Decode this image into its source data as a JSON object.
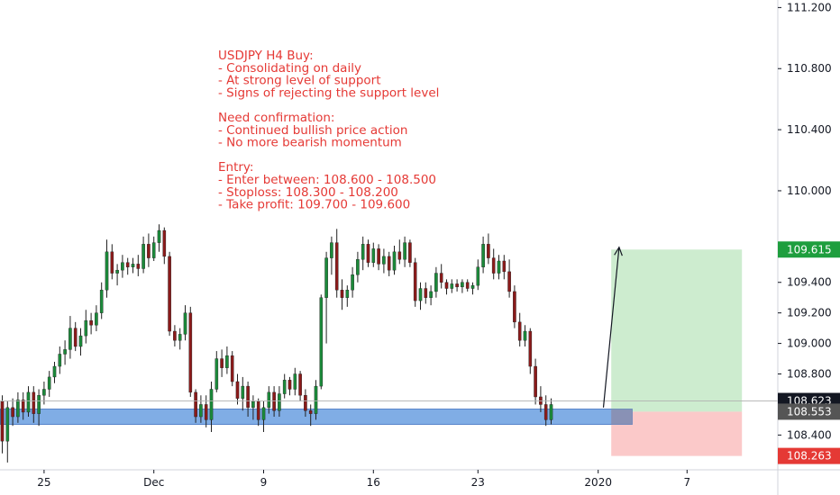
{
  "chart_data": {
    "type": "candlestick",
    "symbol": "USDJPY",
    "timeframe": "H4",
    "colors": {
      "up": "#26a69a",
      "up_body": "#1b8a3a",
      "down": "#8b1a1a",
      "support_zone": "#6a9fe0",
      "profit_zone": "#cdeccf",
      "loss_zone": "#fbc9c9",
      "take_profit_tag": "#1e9e3e",
      "stop_tag": "#e53935",
      "price_tag": "#131722",
      "zone_tag": "#555555",
      "text": "#e53935"
    },
    "y_axis": {
      "ylim": [
        108.19,
        111.22
      ],
      "ticks": [
        "111.200",
        "110.800",
        "110.400",
        "110.000",
        "109.400",
        "109.200",
        "109.000",
        "108.800",
        "108.400"
      ]
    },
    "x_axis": {
      "ticks": [
        {
          "label": "25",
          "bar": 8
        },
        {
          "label": "Dec",
          "bar": 29
        },
        {
          "label": "9",
          "bar": 50
        },
        {
          "label": "16",
          "bar": 71
        },
        {
          "label": "23",
          "bar": 91
        },
        {
          "label": "2020",
          "bar": 114
        },
        {
          "label": "7",
          "bar": 131
        }
      ]
    },
    "price_tags": {
      "take_profit": "109.615",
      "current": "108.623",
      "zone": "108.553",
      "stop": "108.263"
    },
    "levels": {
      "current": 108.623,
      "support_zone": [
        108.47,
        108.57
      ],
      "entry": 108.553,
      "take_profit": 109.615,
      "stop": 108.263
    },
    "position": {
      "start_bar": 116.5,
      "end_bar": 141.5,
      "zone_end_bar": 120.5,
      "arrow_from": {
        "bar": 115,
        "price": 108.58
      },
      "arrow_to": {
        "bar": 118,
        "price": 109.63
      }
    },
    "annotation": [
      "USDJPY H4 Buy:",
      "    - Consolidating on daily",
      "    - At strong level of support",
      "    - Signs of rejecting the support level",
      "",
      "Need confirmation:",
      "    - Continued bullish price action",
      "    - No more bearish momentum",
      "",
      "Entry:",
      "    - Enter between: 108.600 - 108.500",
      "    - Stoploss: 108.300 - 108.200",
      "    - Take profit: 109.700 - 109.600"
    ],
    "candles": [
      [
        108.62,
        108.66,
        108.28,
        108.36
      ],
      [
        108.36,
        108.62,
        108.22,
        108.58
      ],
      [
        108.58,
        108.64,
        108.46,
        108.52
      ],
      [
        108.52,
        108.68,
        108.48,
        108.63
      ],
      [
        108.63,
        108.68,
        108.5,
        108.55
      ],
      [
        108.55,
        108.72,
        108.52,
        108.68
      ],
      [
        108.68,
        108.72,
        108.48,
        108.54
      ],
      [
        108.54,
        108.7,
        108.46,
        108.66
      ],
      [
        108.66,
        108.75,
        108.6,
        108.7
      ],
      [
        108.7,
        108.82,
        108.65,
        108.78
      ],
      [
        108.78,
        108.88,
        108.74,
        108.85
      ],
      [
        108.85,
        108.98,
        108.8,
        108.93
      ],
      [
        108.93,
        109.02,
        108.86,
        108.96
      ],
      [
        108.96,
        109.18,
        108.9,
        109.1
      ],
      [
        109.1,
        109.14,
        108.95,
        108.98
      ],
      [
        108.98,
        109.1,
        108.92,
        109.05
      ],
      [
        109.05,
        109.22,
        109.0,
        109.15
      ],
      [
        109.15,
        109.2,
        109.06,
        109.12
      ],
      [
        109.12,
        109.25,
        109.08,
        109.2
      ],
      [
        109.2,
        109.4,
        109.16,
        109.35
      ],
      [
        109.35,
        109.68,
        109.3,
        109.6
      ],
      [
        109.6,
        109.65,
        109.42,
        109.46
      ],
      [
        109.46,
        109.52,
        109.38,
        109.48
      ],
      [
        109.48,
        109.58,
        109.43,
        109.53
      ],
      [
        109.53,
        109.56,
        109.45,
        109.5
      ],
      [
        109.5,
        109.56,
        109.46,
        109.52
      ],
      [
        109.52,
        109.58,
        109.44,
        109.49
      ],
      [
        109.49,
        109.7,
        109.46,
        109.65
      ],
      [
        109.65,
        109.72,
        109.5,
        109.56
      ],
      [
        109.56,
        109.7,
        109.54,
        109.66
      ],
      [
        109.66,
        109.78,
        109.6,
        109.74
      ],
      [
        109.74,
        109.76,
        109.52,
        109.57
      ],
      [
        109.57,
        109.6,
        109.05,
        109.08
      ],
      [
        109.08,
        109.12,
        108.98,
        109.02
      ],
      [
        109.02,
        109.1,
        108.96,
        109.06
      ],
      [
        109.06,
        109.25,
        109.02,
        109.2
      ],
      [
        109.2,
        109.24,
        108.65,
        108.68
      ],
      [
        108.68,
        108.7,
        108.48,
        108.52
      ],
      [
        108.52,
        108.66,
        108.48,
        108.6
      ],
      [
        108.6,
        108.66,
        108.45,
        108.5
      ],
      [
        108.5,
        108.75,
        108.42,
        108.7
      ],
      [
        108.7,
        108.95,
        108.68,
        108.9
      ],
      [
        108.9,
        108.96,
        108.78,
        108.84
      ],
      [
        108.84,
        108.98,
        108.8,
        108.92
      ],
      [
        108.92,
        108.95,
        108.72,
        108.75
      ],
      [
        108.75,
        108.8,
        108.6,
        108.64
      ],
      [
        108.64,
        108.78,
        108.56,
        108.72
      ],
      [
        108.72,
        108.75,
        108.52,
        108.58
      ],
      [
        108.58,
        108.66,
        108.5,
        108.62
      ],
      [
        108.62,
        108.64,
        108.46,
        108.5
      ],
      [
        108.5,
        108.62,
        108.42,
        108.58
      ],
      [
        108.58,
        108.72,
        108.54,
        108.68
      ],
      [
        108.68,
        108.72,
        108.52,
        108.56
      ],
      [
        108.56,
        108.72,
        108.52,
        108.67
      ],
      [
        108.67,
        108.8,
        108.64,
        108.76
      ],
      [
        108.76,
        108.78,
        108.66,
        108.7
      ],
      [
        108.7,
        108.84,
        108.66,
        108.8
      ],
      [
        108.8,
        108.82,
        108.62,
        108.66
      ],
      [
        108.66,
        108.7,
        108.52,
        108.56
      ],
      [
        108.56,
        108.6,
        108.46,
        108.54
      ],
      [
        108.54,
        108.76,
        108.5,
        108.72
      ],
      [
        108.72,
        109.32,
        108.7,
        109.3
      ],
      [
        109.3,
        109.6,
        109.0,
        109.56
      ],
      [
        109.56,
        109.7,
        109.45,
        109.66
      ],
      [
        109.66,
        109.75,
        109.3,
        109.35
      ],
      [
        109.35,
        109.42,
        109.22,
        109.3
      ],
      [
        109.3,
        109.38,
        109.24,
        109.35
      ],
      [
        109.35,
        109.5,
        109.3,
        109.45
      ],
      [
        109.45,
        109.6,
        109.4,
        109.55
      ],
      [
        109.55,
        109.7,
        109.48,
        109.65
      ],
      [
        109.65,
        109.68,
        109.5,
        109.53
      ],
      [
        109.53,
        109.66,
        109.5,
        109.62
      ],
      [
        109.62,
        109.65,
        109.48,
        109.52
      ],
      [
        109.52,
        109.62,
        109.46,
        109.57
      ],
      [
        109.57,
        109.6,
        109.44,
        109.48
      ],
      [
        109.48,
        109.64,
        109.45,
        109.6
      ],
      [
        109.6,
        109.68,
        109.52,
        109.55
      ],
      [
        109.55,
        109.7,
        109.5,
        109.66
      ],
      [
        109.66,
        109.68,
        109.5,
        109.53
      ],
      [
        109.53,
        109.56,
        109.24,
        109.28
      ],
      [
        109.28,
        109.4,
        109.22,
        109.36
      ],
      [
        109.36,
        109.4,
        109.26,
        109.3
      ],
      [
        109.3,
        109.38,
        109.25,
        109.34
      ],
      [
        109.34,
        109.5,
        109.3,
        109.46
      ],
      [
        109.46,
        109.52,
        109.36,
        109.4
      ],
      [
        109.4,
        109.42,
        109.32,
        109.36
      ],
      [
        109.36,
        109.42,
        109.33,
        109.39
      ],
      [
        109.39,
        109.42,
        109.34,
        109.37
      ],
      [
        109.37,
        109.42,
        109.33,
        109.4
      ],
      [
        109.4,
        109.42,
        109.34,
        109.36
      ],
      [
        109.36,
        109.4,
        109.32,
        109.38
      ],
      [
        109.38,
        109.55,
        109.35,
        109.5
      ],
      [
        109.5,
        109.7,
        109.46,
        109.65
      ],
      [
        109.65,
        109.72,
        109.52,
        109.56
      ],
      [
        109.56,
        109.62,
        109.42,
        109.46
      ],
      [
        109.46,
        109.58,
        109.42,
        109.54
      ],
      [
        109.54,
        109.58,
        109.42,
        109.47
      ],
      [
        109.47,
        109.55,
        109.3,
        109.34
      ],
      [
        109.34,
        109.38,
        109.1,
        109.14
      ],
      [
        109.14,
        109.2,
        108.98,
        109.02
      ],
      [
        109.02,
        109.12,
        108.98,
        109.08
      ],
      [
        109.08,
        109.1,
        108.8,
        108.85
      ],
      [
        108.85,
        108.9,
        108.6,
        108.65
      ],
      [
        108.65,
        108.72,
        108.55,
        108.6
      ],
      [
        108.6,
        108.66,
        108.46,
        108.5
      ],
      [
        108.5,
        108.64,
        108.47,
        108.6
      ]
    ]
  }
}
